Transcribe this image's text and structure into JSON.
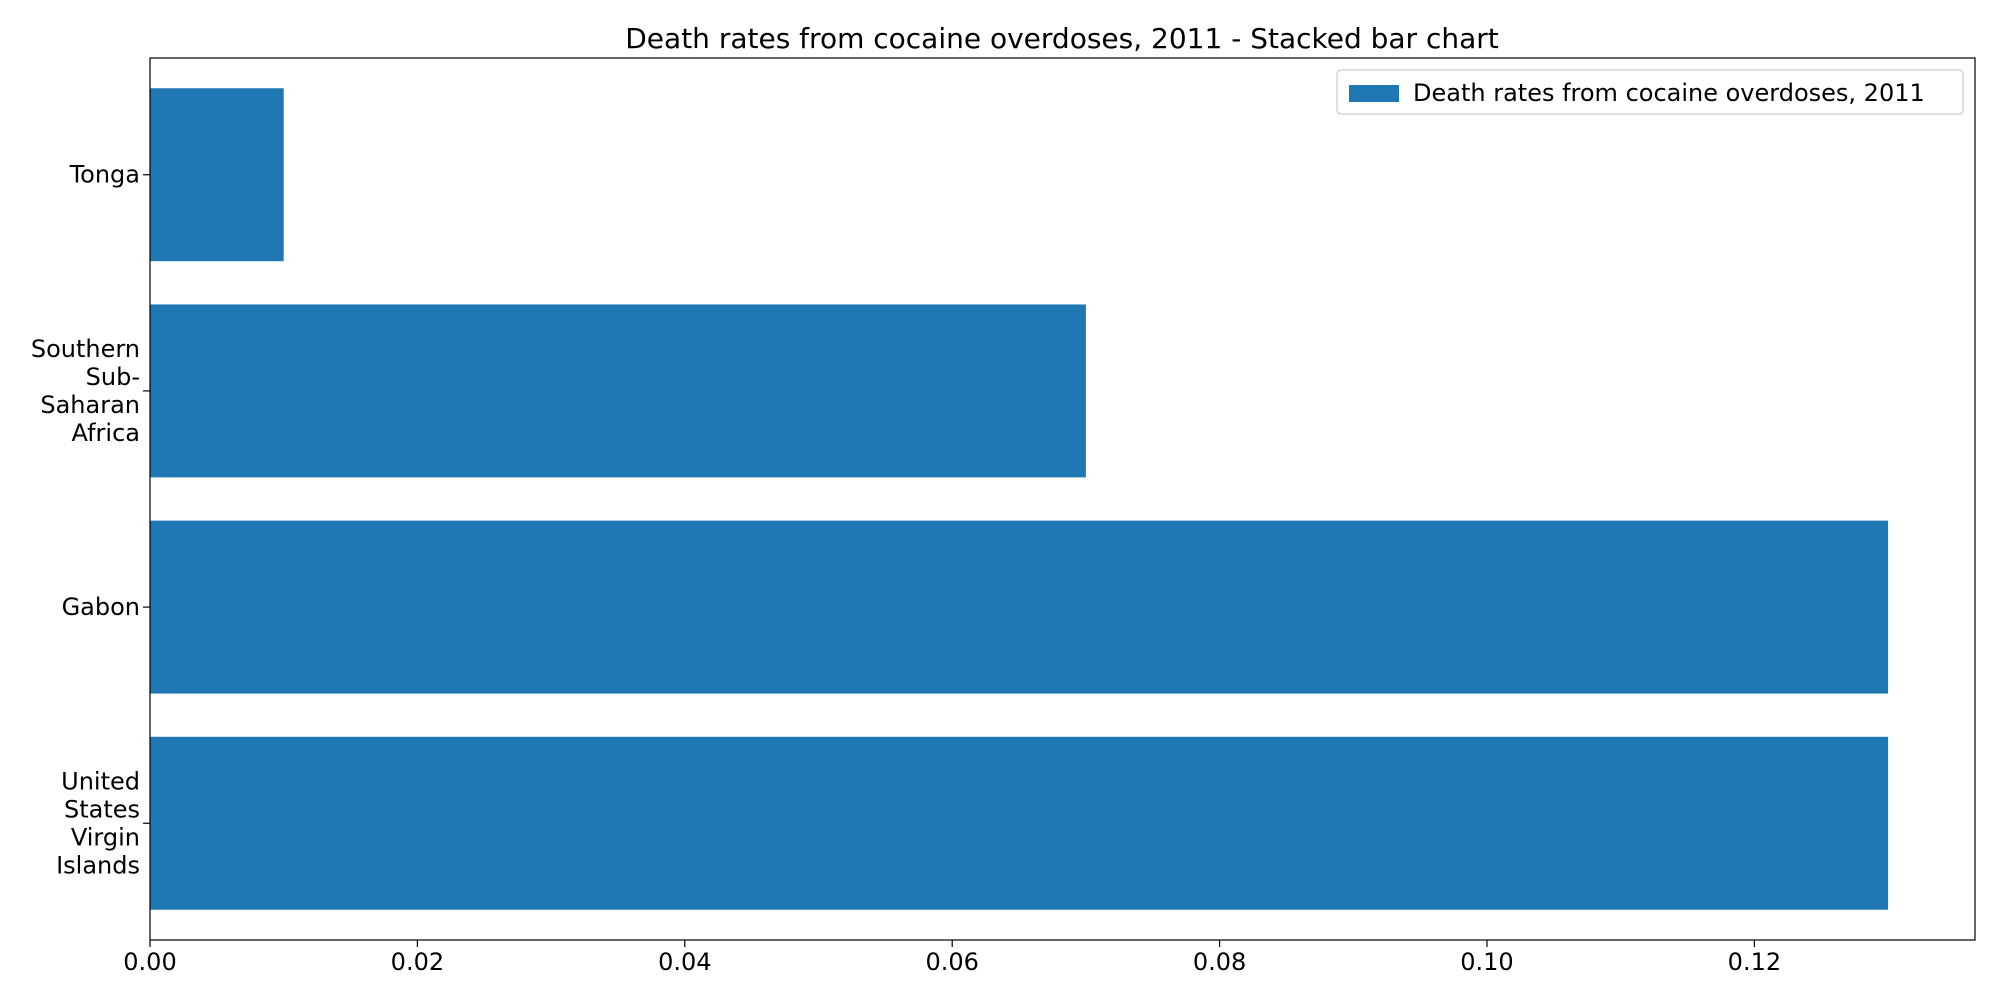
{
  "chart_data": {
    "type": "bar",
    "orientation": "horizontal",
    "title": "Death rates from cocaine overdoses, 2011 - Stacked bar chart",
    "xlabel": "",
    "ylabel": "",
    "categories": [
      [
        "United",
        "States",
        "Virgin",
        "Islands"
      ],
      [
        "Gabon"
      ],
      [
        "Southern",
        "Sub-",
        "Saharan",
        "Africa"
      ],
      [
        "Tonga"
      ]
    ],
    "series": [
      {
        "name": "Death rates from cocaine overdoses, 2011",
        "color": "#1f77b4",
        "values": [
          0.13,
          0.13,
          0.07,
          0.01
        ]
      }
    ],
    "xlim": [
      0,
      0.1365
    ],
    "xticks": [
      "0.00",
      "0.02",
      "0.04",
      "0.06",
      "0.08",
      "0.10",
      "0.12"
    ],
    "grid": false,
    "legend_position": "top-right"
  }
}
